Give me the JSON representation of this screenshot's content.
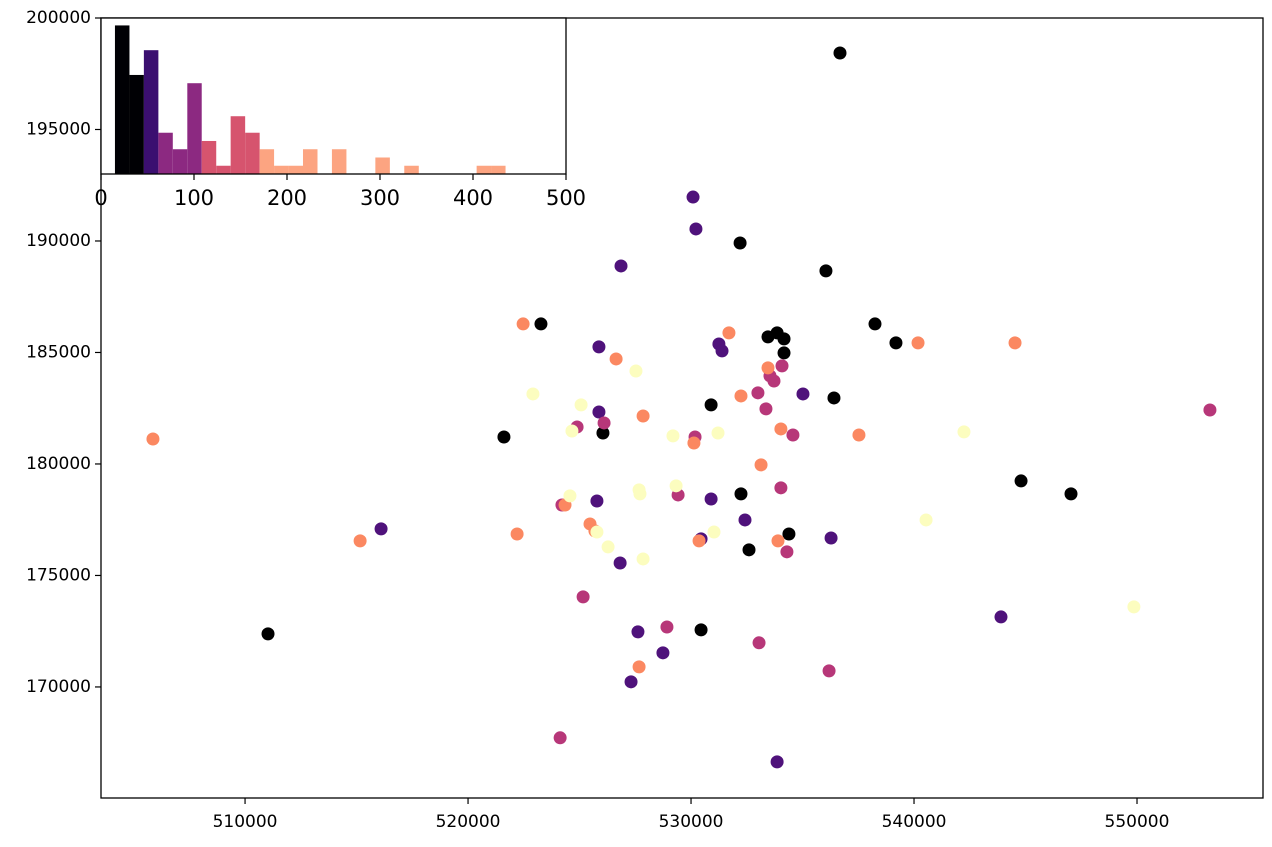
{
  "chart_data": [
    {
      "type": "scatter",
      "xlim": [
        503540,
        555650
      ],
      "ylim": [
        165020,
        200000
      ],
      "xticks": [
        510000,
        520000,
        530000,
        540000,
        550000
      ],
      "yticks": [
        170000,
        175000,
        180000,
        185000,
        190000,
        195000,
        200000
      ],
      "series": [
        {
          "color": "#000000",
          "x": [
            536680,
            532200,
            536050,
            523270,
            538250,
            533450,
            533860,
            534170,
            539190,
            534170,
            530900,
            536410,
            521610,
            526050,
            544800,
            547040,
            532240,
            534390,
            532600,
            511030,
            530450
          ],
          "values": [
            198430,
            189910,
            188660,
            186280,
            186280,
            185700,
            185880,
            185610,
            185430,
            184980,
            182650,
            182960,
            181210,
            181390,
            179240,
            178660,
            178660,
            176860,
            176150,
            172380,
            172560
          ]
        },
        {
          "color": "#4f127b",
          "x": [
            530090,
            530220,
            526860,
            525870,
            531250,
            531390,
            535020,
            525870,
            525780,
            530900,
            532420,
            530450,
            536280,
            526820,
            516100,
            543900,
            527620,
            528740,
            527310,
            533860
          ],
          "values": [
            191970,
            190540,
            188880,
            185250,
            185380,
            185070,
            183140,
            182330,
            178340,
            178430,
            177490,
            176640,
            176680,
            175560,
            177090,
            173140,
            172470,
            171530,
            170230,
            166640
          ]
        },
        {
          "color": "#b73779",
          "x": [
            534080,
            533720,
            533000,
            533360,
            534570,
            524890,
            526100,
            530180,
            534030,
            529420,
            524210,
            534300,
            525160,
            528920,
            533050,
            536190,
            524130,
            553270,
            533540
          ],
          "values": [
            184400,
            183720,
            183190,
            182470,
            181300,
            181660,
            181840,
            181210,
            178930,
            178610,
            178160,
            176060,
            174040,
            172690,
            171980,
            170720,
            167720,
            182420,
            183950
          ]
        },
        {
          "color": "#fb8861",
          "x": [
            505870,
            522470,
            531700,
            526640,
            533450,
            532240,
            527850,
            534030,
            537530,
            530130,
            533140,
            540180,
            544530,
            522200,
            515160,
            525470,
            525690,
            524350,
            530360,
            533900,
            527670
          ],
          "values": [
            181120,
            186280,
            185880,
            184710,
            184310,
            183050,
            182150,
            181570,
            181300,
            180940,
            179960,
            185430,
            185430,
            176860,
            176550,
            177310,
            177000,
            178160,
            176550,
            176550,
            170900
          ]
        },
        {
          "color": "#fcfdbf",
          "x": [
            522910,
            527530,
            525070,
            524660,
            529190,
            531210,
            542240,
            524570,
            529330,
            527670,
            527710,
            525780,
            531030,
            526280,
            527850,
            540540,
            549860
          ],
          "values": [
            183140,
            184170,
            182650,
            181480,
            181260,
            181390,
            181440,
            178570,
            179020,
            178840,
            178660,
            176950,
            176950,
            176280,
            175740,
            177490,
            173590
          ]
        }
      ]
    },
    {
      "type": "histogram",
      "xlim": [
        0,
        500
      ],
      "ylim": [
        0,
        18.9
      ],
      "xticks": [
        0,
        100,
        200,
        300,
        400,
        500
      ],
      "bins": [
        15,
        30.6,
        46.1,
        61.7,
        77.2,
        92.8,
        108.3,
        123.9,
        139.4,
        155,
        170.6,
        186.1,
        201.7,
        217.2,
        232.8,
        248.3,
        263.9,
        279.4,
        295,
        310.6,
        326.1,
        341.7,
        357.2,
        372.8,
        388.3,
        403.9,
        419.4,
        435
      ],
      "counts": [
        18,
        12,
        15,
        5,
        3,
        11,
        4,
        1,
        7,
        5,
        3,
        1,
        1,
        3,
        0,
        3,
        0,
        0,
        2,
        0,
        1,
        0,
        0,
        0,
        0,
        1,
        1
      ],
      "colors": [
        "#000004",
        "#000004",
        "#3b0f70",
        "#8c2981",
        "#8c2981",
        "#8c2981",
        "#d6546e",
        "#d6546e",
        "#d6546e",
        "#d6546e",
        "#fca481",
        "#fca481",
        "#fca481",
        "#fca481",
        "#fca481",
        "#fca481",
        "#fca481",
        "#fca481",
        "#fca481",
        "#fca481",
        "#fca481",
        "#fca481",
        "#fca481",
        "#fca481",
        "#fca481",
        "#fca481",
        "#fca481"
      ]
    }
  ]
}
